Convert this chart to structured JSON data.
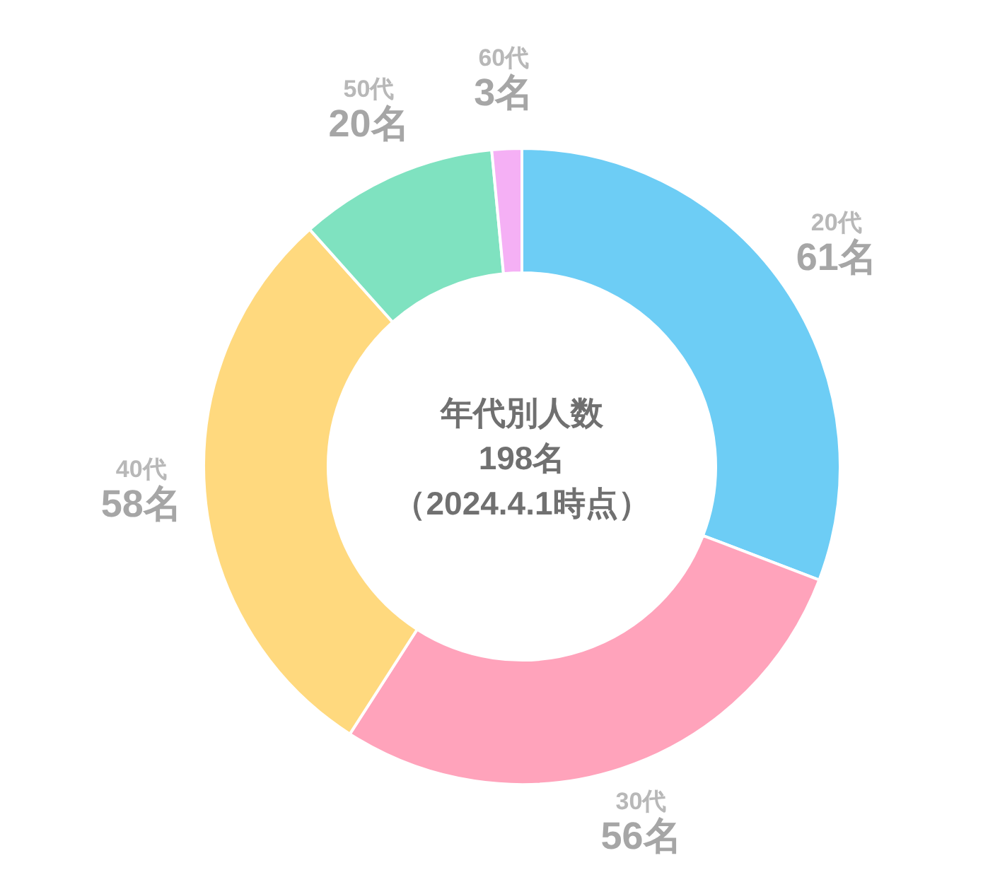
{
  "chart_data": {
    "type": "donut",
    "categories": [
      "20代",
      "30代",
      "40代",
      "50代",
      "60代"
    ],
    "values": [
      61,
      56,
      58,
      20,
      3
    ],
    "value_labels": [
      "61名",
      "56名",
      "58名",
      "20名",
      "3名"
    ],
    "colors": [
      "#6dcdf5",
      "#ffa3bb",
      "#ffd97e",
      "#7fe2c0",
      "#f5b0f5"
    ],
    "annotations": [
      "年代別人数",
      "198名",
      "（2024.4.1時点）"
    ]
  }
}
